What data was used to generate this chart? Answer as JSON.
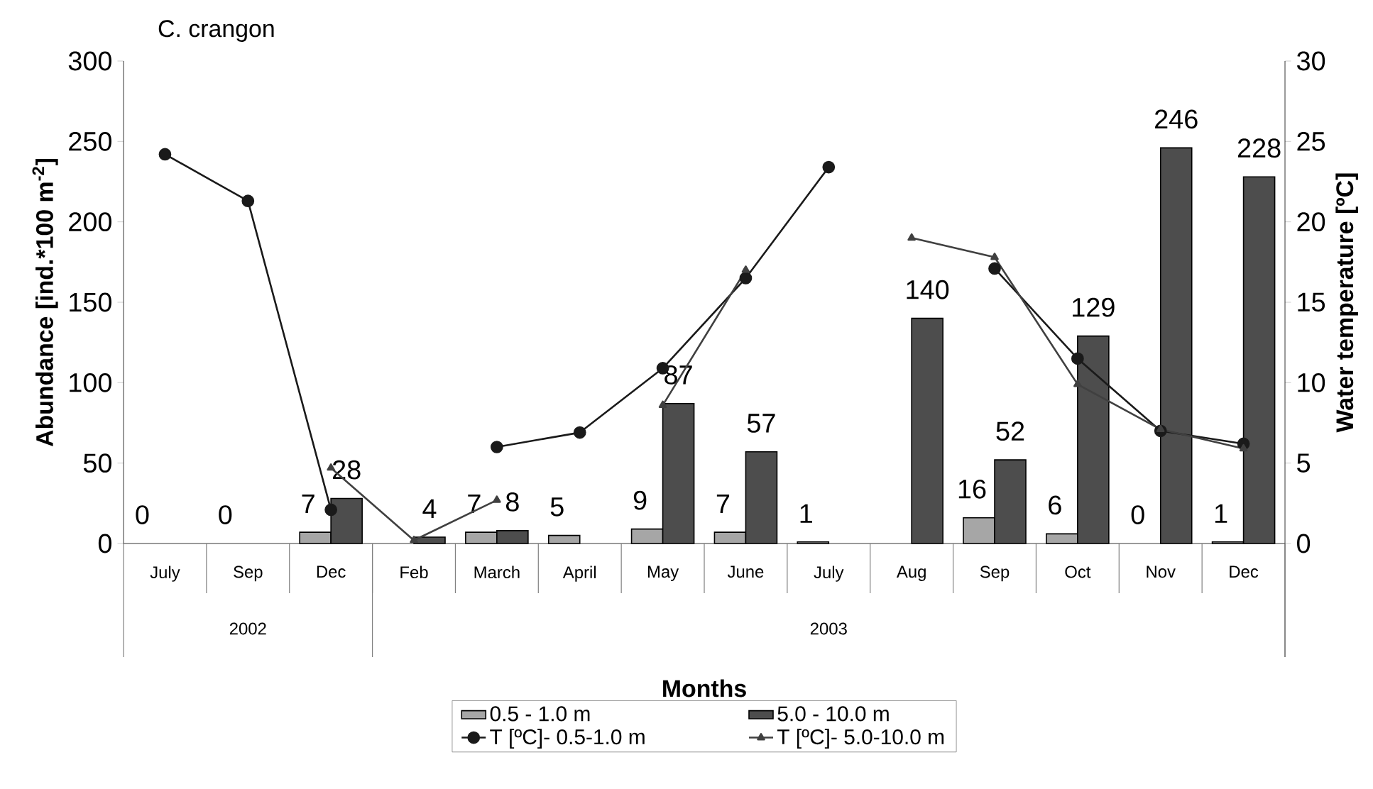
{
  "chart_data": {
    "type": "bar",
    "title": "C. crangon",
    "xlabel": "Months",
    "ylabel": "Abundance [ind.*100 m$^{-2}$]",
    "y2label": "Water temperature [ºC]",
    "categories": [
      "July",
      "Sep",
      "Dec",
      "Feb",
      "March",
      "April",
      "May",
      "June",
      "July",
      "Aug",
      "Sep",
      "Oct",
      "Nov",
      "Dec"
    ],
    "series": [
      {
        "name": "0.5 - 1.0 m",
        "color": "#a6a6a6",
        "values": [
          0,
          0,
          7,
          null,
          7,
          5,
          9,
          7,
          1,
          null,
          16,
          6,
          0,
          1
        ],
        "value_labels": [
          "0",
          "0",
          "7",
          null,
          "7",
          "5",
          "9",
          "7",
          "1",
          null,
          "16",
          "6",
          "0",
          "1"
        ]
      },
      {
        "name": "5.0 - 10.0 m",
        "color": "#4d4d4d",
        "values": [
          null,
          null,
          28,
          4,
          8,
          null,
          87,
          57,
          null,
          140,
          52,
          129,
          246,
          228
        ],
        "value_labels": [
          null,
          null,
          "28",
          "4",
          "8",
          null,
          "87",
          "57",
          null,
          "140",
          "52",
          "129",
          "246",
          "228"
        ]
      },
      {
        "name": "T [ºC]- 0.5-1.0 m",
        "type": "line",
        "axis": "y2",
        "marker": "circle",
        "color": "#1a1a1a",
        "values": [
          24.2,
          21.3,
          2.1,
          null,
          6.0,
          6.9,
          10.9,
          16.5,
          23.4,
          null,
          17.1,
          11.5,
          7.0,
          6.2
        ]
      },
      {
        "name": "T [ºC]- 5.0-10.0 m",
        "type": "line",
        "axis": "y2",
        "marker": "triangle",
        "color": "#404040",
        "values": [
          null,
          null,
          4.7,
          0.2,
          2.7,
          null,
          8.6,
          17.0,
          null,
          19.0,
          17.8,
          9.9,
          7.1,
          5.9
        ]
      }
    ],
    "ylim": [
      0,
      300
    ],
    "yticks": [
      0,
      50,
      100,
      150,
      200,
      250,
      300
    ],
    "y2lim": [
      0,
      30
    ],
    "y2ticks": [
      0,
      5,
      10,
      15,
      20,
      25,
      30
    ],
    "legend": "bottom",
    "annotations": [
      "2002",
      "2003"
    ]
  }
}
